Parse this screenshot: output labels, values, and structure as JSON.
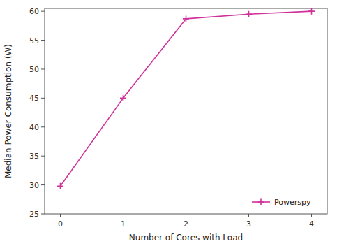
{
  "chart_data": {
    "type": "line",
    "xlabel": "Number of Cores with Load",
    "ylabel": "Median Power Consumption (W)",
    "x": [
      0,
      1,
      2,
      3,
      4
    ],
    "series": [
      {
        "name": "Powerspy",
        "color": "#d0309a",
        "marker": "plus",
        "values": [
          29.8,
          45.0,
          58.7,
          59.5,
          60.0
        ]
      }
    ],
    "xlim": [
      -0.25,
      4.25
    ],
    "ylim": [
      25,
      60.5
    ],
    "xticks": [
      0,
      1,
      2,
      3,
      4
    ],
    "yticks": [
      25,
      30,
      35,
      40,
      45,
      50,
      55,
      60
    ],
    "legend": "lower right",
    "grid": false,
    "background_color": "#ffffff"
  }
}
